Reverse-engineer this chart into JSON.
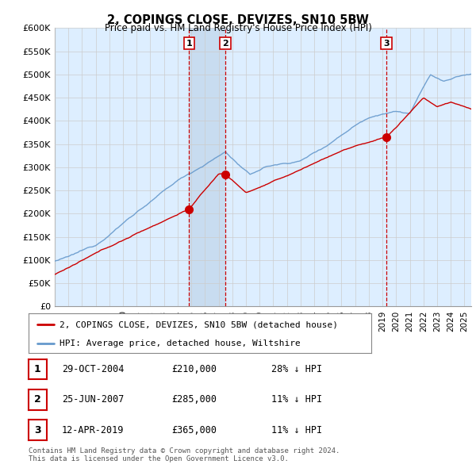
{
  "title": "2, COPINGS CLOSE, DEVIZES, SN10 5BW",
  "subtitle": "Price paid vs. HM Land Registry's House Price Index (HPI)",
  "ylabel_ticks": [
    "£0",
    "£50K",
    "£100K",
    "£150K",
    "£200K",
    "£250K",
    "£300K",
    "£350K",
    "£400K",
    "£450K",
    "£500K",
    "£550K"
  ],
  "ytick_values": [
    0,
    50000,
    100000,
    150000,
    200000,
    250000,
    300000,
    350000,
    400000,
    450000,
    500000,
    550000
  ],
  "ymax_label": "£600K",
  "background_color": "#ffffff",
  "plot_bg_color": "#ddeeff",
  "shade_color": "#c8dcf0",
  "grid_color": "#cccccc",
  "hpi_color": "#6699cc",
  "sale_color": "#cc0000",
  "vline_color": "#cc0000",
  "sale_points": [
    {
      "date_num": 2004.83,
      "price": 210000,
      "label": "1"
    },
    {
      "date_num": 2007.49,
      "price": 285000,
      "label": "2"
    },
    {
      "date_num": 2019.28,
      "price": 365000,
      "label": "3"
    }
  ],
  "legend_entries": [
    "2, COPINGS CLOSE, DEVIZES, SN10 5BW (detached house)",
    "HPI: Average price, detached house, Wiltshire"
  ],
  "table_rows": [
    {
      "num": "1",
      "date": "29-OCT-2004",
      "price": "£210,000",
      "hpi": "28% ↓ HPI"
    },
    {
      "num": "2",
      "date": "25-JUN-2007",
      "price": "£285,000",
      "hpi": "11% ↓ HPI"
    },
    {
      "num": "3",
      "date": "12-APR-2019",
      "price": "£365,000",
      "hpi": "11% ↓ HPI"
    }
  ],
  "footnote": "Contains HM Land Registry data © Crown copyright and database right 2024.\nThis data is licensed under the Open Government Licence v3.0.",
  "xmin": 1995,
  "xmax": 2025.5,
  "ymin": 0,
  "ymax": 600000
}
